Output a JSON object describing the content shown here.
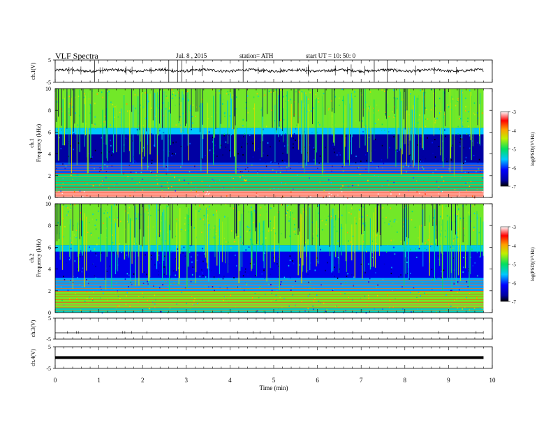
{
  "header": {
    "title": "VLF Spectra",
    "date": "Jul. 8 , 2015",
    "station": "station= ATH",
    "start": "start UT = 10: 50: 0"
  },
  "chart_data": [
    {
      "type": "line",
      "panel": "ch1-waveform",
      "ylabel": "ch.1(V)",
      "ylim": [
        -5,
        5
      ],
      "yticks": [
        "5",
        "-5"
      ],
      "x_range": [
        0,
        9.8
      ],
      "baseline": 0.3,
      "noise_amplitude": 0.6,
      "spikes": [
        0.9,
        2.6,
        2.8,
        2.9,
        4.3,
        7.3,
        7.6
      ]
    },
    {
      "type": "heatmap",
      "panel": "ch1-spectrogram",
      "ylabel": "Frequency (kHz)",
      "channel_label": "ch.1",
      "ylim": [
        0,
        10
      ],
      "yticks": [
        "0",
        "2",
        "4",
        "6",
        "8",
        "10"
      ],
      "x_range": [
        0,
        9.8
      ],
      "colorbar": {
        "label": "log(PSD)(V²/Hz)",
        "range": [
          -7,
          -3
        ],
        "ticks": [
          "-3",
          "-4",
          "-5",
          "-6",
          "-7"
        ]
      },
      "frequency_bands_log_psd": [
        {
          "f": [
            0,
            0.6
          ],
          "v": -3.4
        },
        {
          "f": [
            0.6,
            2.2
          ],
          "v": -5.4
        },
        {
          "f": [
            2.2,
            3.2
          ],
          "v": -6.1
        },
        {
          "f": [
            3.2,
            5.8
          ],
          "v": -6.7
        },
        {
          "f": [
            5.8,
            6.4
          ],
          "v": -5.8
        },
        {
          "f": [
            6.4,
            10
          ],
          "v": -5.0
        }
      ]
    },
    {
      "type": "heatmap",
      "panel": "ch2-spectrogram",
      "ylabel": "Frequency (kHz)",
      "channel_label": "ch.2",
      "ylim": [
        0,
        10
      ],
      "yticks": [
        "0",
        "2",
        "4",
        "6",
        "8",
        "10"
      ],
      "x_range": [
        0,
        9.8
      ],
      "colorbar": {
        "label": "log(PSD)(V²/Hz)",
        "range": [
          -7,
          -3
        ],
        "ticks": [
          "-3",
          "-4",
          "-5",
          "-6",
          "-7"
        ]
      },
      "frequency_bands_log_psd": [
        {
          "f": [
            0,
            0.4
          ],
          "v": -5.6
        },
        {
          "f": [
            0.4,
            2.0
          ],
          "v": -5.0
        },
        {
          "f": [
            2.0,
            3.2
          ],
          "v": -5.9
        },
        {
          "f": [
            3.2,
            5.6
          ],
          "v": -6.4
        },
        {
          "f": [
            5.6,
            6.2
          ],
          "v": -5.7
        },
        {
          "f": [
            6.2,
            10
          ],
          "v": -5.0
        }
      ]
    },
    {
      "type": "line",
      "panel": "ch3-waveform",
      "ylabel": "ch.3(V)",
      "ylim": [
        -5,
        5
      ],
      "yticks": [
        "5",
        "-5"
      ],
      "x_range": [
        0,
        9.8
      ],
      "baseline": -2.0,
      "noise_amplitude": 0.05
    },
    {
      "type": "line",
      "panel": "ch4-waveform",
      "ylabel": "ch.4(V)",
      "ylim": [
        -5,
        5
      ],
      "yticks": [
        "5",
        "-5"
      ],
      "x_range": [
        0,
        9.8
      ],
      "baseline": 0,
      "noise_amplitude": 0.05
    }
  ],
  "x_axis": {
    "label": "Time (min)",
    "range": [
      0,
      10
    ],
    "ticks": [
      "0",
      "1",
      "2",
      "3",
      "4",
      "5",
      "6",
      "7",
      "8",
      "9",
      "10"
    ]
  }
}
